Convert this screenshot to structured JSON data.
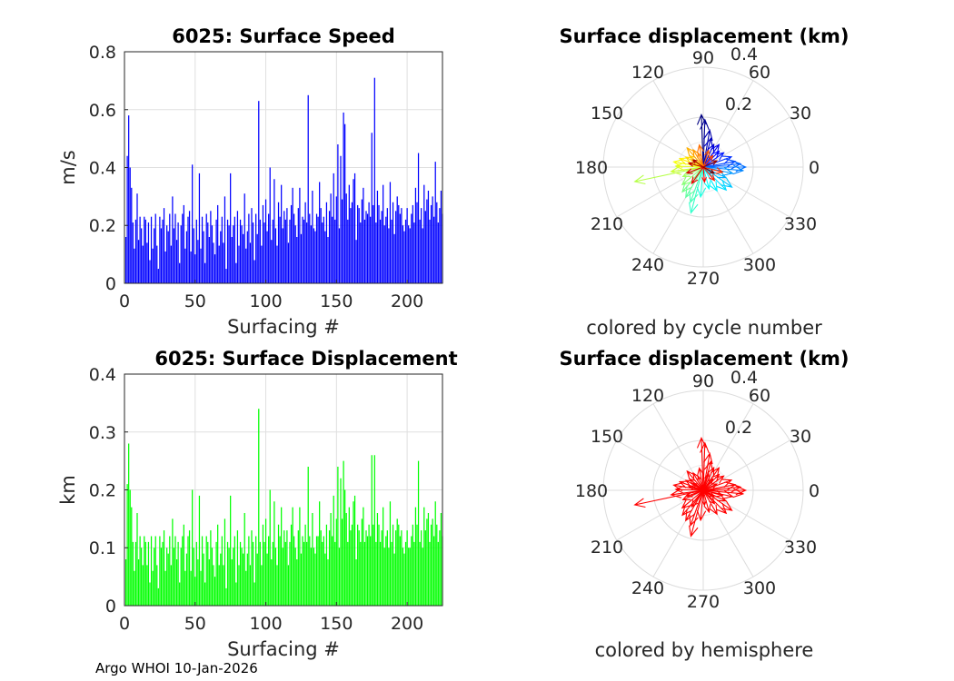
{
  "chart_data": [
    {
      "id": "speed",
      "type": "bar",
      "title": "6025: Surface Speed",
      "xlabel": "Surfacing #",
      "ylabel": "m/s",
      "xlim": [
        0,
        225
      ],
      "ylim": [
        0,
        0.8
      ],
      "xticks": [
        "0",
        "50",
        "100",
        "150",
        "200"
      ],
      "yticks": [
        "0",
        "0.2",
        "0.4",
        "0.6",
        "0.8"
      ],
      "color": "#0000ff",
      "grid": true,
      "values": [
        0.16,
        0.44,
        0.58,
        0.4,
        0.33,
        0.21,
        0.12,
        0.22,
        0.31,
        0.15,
        0.23,
        0.19,
        0.13,
        0.23,
        0.22,
        0.14,
        0.21,
        0.08,
        0.23,
        0.12,
        0.19,
        0.24,
        0.13,
        0.05,
        0.23,
        0.19,
        0.22,
        0.26,
        0.11,
        0.2,
        0.18,
        0.24,
        0.13,
        0.3,
        0.19,
        0.24,
        0.15,
        0.21,
        0.07,
        0.2,
        0.24,
        0.27,
        0.12,
        0.18,
        0.23,
        0.25,
        0.11,
        0.41,
        0.19,
        0.1,
        0.22,
        0.15,
        0.38,
        0.12,
        0.23,
        0.18,
        0.07,
        0.24,
        0.21,
        0.16,
        0.25,
        0.2,
        0.14,
        0.1,
        0.22,
        0.27,
        0.13,
        0.18,
        0.23,
        0.14,
        0.3,
        0.05,
        0.22,
        0.2,
        0.38,
        0.16,
        0.2,
        0.23,
        0.07,
        0.25,
        0.13,
        0.22,
        0.2,
        0.17,
        0.31,
        0.12,
        0.18,
        0.24,
        0.14,
        0.26,
        0.21,
        0.08,
        0.24,
        0.17,
        0.63,
        0.22,
        0.13,
        0.27,
        0.21,
        0.29,
        0.18,
        0.24,
        0.4,
        0.15,
        0.22,
        0.36,
        0.19,
        0.13,
        0.28,
        0.23,
        0.34,
        0.19,
        0.25,
        0.22,
        0.26,
        0.14,
        0.22,
        0.27,
        0.33,
        0.24,
        0.2,
        0.16,
        0.26,
        0.33,
        0.17,
        0.23,
        0.22,
        0.28,
        0.21,
        0.65,
        0.24,
        0.2,
        0.32,
        0.19,
        0.18,
        0.24,
        0.23,
        0.35,
        0.26,
        0.21,
        0.23,
        0.18,
        0.28,
        0.16,
        0.25,
        0.31,
        0.23,
        0.38,
        0.22,
        0.3,
        0.48,
        0.19,
        0.44,
        0.29,
        0.59,
        0.55,
        0.31,
        0.22,
        0.34,
        0.26,
        0.28,
        0.36,
        0.38,
        0.15,
        0.27,
        0.26,
        0.21,
        0.29,
        0.33,
        0.22,
        0.25,
        0.24,
        0.28,
        0.23,
        0.52,
        0.27,
        0.71,
        0.21,
        0.32,
        0.27,
        0.22,
        0.25,
        0.34,
        0.2,
        0.23,
        0.26,
        0.19,
        0.35,
        0.22,
        0.28,
        0.17,
        0.25,
        0.3,
        0.27,
        0.24,
        0.26,
        0.2,
        0.18,
        0.22,
        0.26,
        0.2,
        0.19,
        0.24,
        0.27,
        0.21,
        0.33,
        0.28,
        0.45,
        0.22,
        0.26,
        0.19,
        0.34,
        0.25,
        0.29,
        0.32,
        0.22,
        0.27,
        0.3,
        0.23,
        0.42,
        0.28,
        0.21,
        0.26,
        0.32,
        0.24
      ]
    },
    {
      "id": "displacement",
      "type": "bar",
      "title": "6025: Surface Displacement",
      "xlabel": "Surfacing #",
      "ylabel": "km",
      "xlim": [
        0,
        225
      ],
      "ylim": [
        0,
        0.4
      ],
      "xticks": [
        "0",
        "50",
        "100",
        "150",
        "200"
      ],
      "yticks": [
        "0",
        "0.1",
        "0.2",
        "0.3",
        "0.4"
      ],
      "color": "#00ff00",
      "grid": true,
      "values": [
        0.08,
        0.21,
        0.28,
        0.2,
        0.17,
        0.11,
        0.06,
        0.11,
        0.16,
        0.08,
        0.12,
        0.1,
        0.07,
        0.12,
        0.11,
        0.07,
        0.11,
        0.04,
        0.12,
        0.06,
        0.1,
        0.12,
        0.07,
        0.03,
        0.12,
        0.1,
        0.11,
        0.13,
        0.06,
        0.1,
        0.09,
        0.12,
        0.07,
        0.15,
        0.1,
        0.12,
        0.08,
        0.11,
        0.04,
        0.1,
        0.12,
        0.14,
        0.06,
        0.09,
        0.12,
        0.13,
        0.06,
        0.2,
        0.1,
        0.05,
        0.11,
        0.08,
        0.19,
        0.06,
        0.12,
        0.09,
        0.04,
        0.12,
        0.11,
        0.08,
        0.13,
        0.1,
        0.07,
        0.05,
        0.11,
        0.14,
        0.07,
        0.09,
        0.12,
        0.07,
        0.15,
        0.03,
        0.11,
        0.1,
        0.19,
        0.08,
        0.1,
        0.12,
        0.04,
        0.13,
        0.07,
        0.11,
        0.1,
        0.09,
        0.16,
        0.06,
        0.09,
        0.12,
        0.07,
        0.13,
        0.11,
        0.04,
        0.12,
        0.09,
        0.34,
        0.11,
        0.07,
        0.14,
        0.11,
        0.15,
        0.09,
        0.12,
        0.2,
        0.08,
        0.11,
        0.18,
        0.1,
        0.07,
        0.14,
        0.12,
        0.17,
        0.1,
        0.13,
        0.11,
        0.13,
        0.07,
        0.11,
        0.14,
        0.17,
        0.12,
        0.1,
        0.08,
        0.13,
        0.17,
        0.09,
        0.12,
        0.11,
        0.14,
        0.11,
        0.24,
        0.12,
        0.1,
        0.16,
        0.1,
        0.09,
        0.12,
        0.12,
        0.18,
        0.13,
        0.11,
        0.12,
        0.09,
        0.14,
        0.08,
        0.13,
        0.16,
        0.12,
        0.19,
        0.11,
        0.15,
        0.24,
        0.1,
        0.22,
        0.15,
        0.25,
        0.2,
        0.16,
        0.11,
        0.17,
        0.13,
        0.14,
        0.18,
        0.19,
        0.08,
        0.14,
        0.13,
        0.11,
        0.15,
        0.17,
        0.11,
        0.13,
        0.12,
        0.14,
        0.12,
        0.26,
        0.14,
        0.26,
        0.11,
        0.16,
        0.14,
        0.11,
        0.13,
        0.17,
        0.1,
        0.12,
        0.13,
        0.1,
        0.18,
        0.11,
        0.14,
        0.09,
        0.13,
        0.15,
        0.14,
        0.12,
        0.13,
        0.1,
        0.09,
        0.11,
        0.13,
        0.1,
        0.1,
        0.12,
        0.14,
        0.11,
        0.17,
        0.14,
        0.25,
        0.11,
        0.13,
        0.1,
        0.17,
        0.13,
        0.15,
        0.16,
        0.11,
        0.14,
        0.15,
        0.12,
        0.18,
        0.14,
        0.11,
        0.13,
        0.16,
        0.12
      ]
    },
    {
      "id": "polar-cycle",
      "type": "polar-compass",
      "title": "Surface displacement (km)",
      "caption": "colored by cycle number",
      "rmax": 0.4,
      "rticks": [
        "0.2",
        "0.4"
      ],
      "rtick_values": [
        0.2,
        0.4
      ],
      "angle_labels": [
        "0",
        "30",
        "60",
        "90",
        "120",
        "150",
        "180",
        "210",
        "240",
        "270",
        "300",
        "330"
      ],
      "angles_deg": [
        0,
        30,
        60,
        90,
        120,
        150,
        180,
        210,
        240,
        270,
        300,
        330
      ],
      "color_mode": "jet-by-cycle",
      "vectors": [
        {
          "angle": 92,
          "r": 0.21
        },
        {
          "angle": 88,
          "r": 0.19
        },
        {
          "angle": 80,
          "r": 0.15
        },
        {
          "angle": 75,
          "r": 0.12
        },
        {
          "angle": 65,
          "r": 0.1
        },
        {
          "angle": 55,
          "r": 0.11
        },
        {
          "angle": 45,
          "r": 0.09
        },
        {
          "angle": 35,
          "r": 0.1
        },
        {
          "angle": 20,
          "r": 0.12
        },
        {
          "angle": 10,
          "r": 0.13
        },
        {
          "angle": 5,
          "r": 0.15
        },
        {
          "angle": 0,
          "r": 0.17
        },
        {
          "angle": -5,
          "r": 0.16
        },
        {
          "angle": -12,
          "r": 0.12
        },
        {
          "angle": -25,
          "r": 0.1
        },
        {
          "angle": -35,
          "r": 0.14
        },
        {
          "angle": -45,
          "r": 0.13
        },
        {
          "angle": -60,
          "r": 0.11
        },
        {
          "angle": -75,
          "r": 0.09
        },
        {
          "angle": -95,
          "r": 0.12
        },
        {
          "angle": -105,
          "r": 0.19
        },
        {
          "angle": -110,
          "r": 0.15
        },
        {
          "angle": -120,
          "r": 0.14
        },
        {
          "angle": -130,
          "r": 0.13
        },
        {
          "angle": -140,
          "r": 0.11
        },
        {
          "angle": -155,
          "r": 0.09
        },
        {
          "angle": -168,
          "r": 0.28
        },
        {
          "angle": -172,
          "r": 0.13
        },
        {
          "angle": 178,
          "r": 0.11
        },
        {
          "angle": 170,
          "r": 0.12
        },
        {
          "angle": 160,
          "r": 0.1
        },
        {
          "angle": 150,
          "r": 0.08
        },
        {
          "angle": 140,
          "r": 0.07
        },
        {
          "angle": 130,
          "r": 0.1
        },
        {
          "angle": 120,
          "r": 0.08
        },
        {
          "angle": 110,
          "r": 0.06
        },
        {
          "angle": 100,
          "r": 0.09
        },
        {
          "angle": 72,
          "r": 0.07
        },
        {
          "angle": 50,
          "r": 0.06
        },
        {
          "angle": -15,
          "r": 0.08
        },
        {
          "angle": -50,
          "r": 0.07
        },
        {
          "angle": -85,
          "r": 0.06
        },
        {
          "angle": -125,
          "r": 0.08
        },
        {
          "angle": -160,
          "r": 0.07
        },
        {
          "angle": 165,
          "r": 0.06
        },
        {
          "angle": 145,
          "r": 0.05
        },
        {
          "angle": 25,
          "r": 0.06
        },
        {
          "angle": -30,
          "r": 0.05
        }
      ]
    },
    {
      "id": "polar-hemisphere",
      "type": "polar-compass",
      "title": "Surface displacement (km)",
      "caption": "colored by hemisphere",
      "rmax": 0.4,
      "rticks": [
        "0.2",
        "0.4"
      ],
      "rtick_values": [
        0.2,
        0.4
      ],
      "angle_labels": [
        "0",
        "30",
        "60",
        "90",
        "120",
        "150",
        "180",
        "210",
        "240",
        "270",
        "300",
        "330"
      ],
      "angles_deg": [
        0,
        30,
        60,
        90,
        120,
        150,
        180,
        210,
        240,
        270,
        300,
        330
      ],
      "color_mode": "single",
      "color": "#ff0000",
      "vectors": [
        {
          "angle": 92,
          "r": 0.21
        },
        {
          "angle": 88,
          "r": 0.19
        },
        {
          "angle": 80,
          "r": 0.15
        },
        {
          "angle": 75,
          "r": 0.12
        },
        {
          "angle": 65,
          "r": 0.1
        },
        {
          "angle": 55,
          "r": 0.11
        },
        {
          "angle": 45,
          "r": 0.09
        },
        {
          "angle": 35,
          "r": 0.1
        },
        {
          "angle": 20,
          "r": 0.12
        },
        {
          "angle": 10,
          "r": 0.13
        },
        {
          "angle": 5,
          "r": 0.15
        },
        {
          "angle": 0,
          "r": 0.17
        },
        {
          "angle": -5,
          "r": 0.16
        },
        {
          "angle": -12,
          "r": 0.12
        },
        {
          "angle": -25,
          "r": 0.1
        },
        {
          "angle": -35,
          "r": 0.14
        },
        {
          "angle": -45,
          "r": 0.13
        },
        {
          "angle": -60,
          "r": 0.11
        },
        {
          "angle": -75,
          "r": 0.09
        },
        {
          "angle": -95,
          "r": 0.12
        },
        {
          "angle": -105,
          "r": 0.19
        },
        {
          "angle": -110,
          "r": 0.15
        },
        {
          "angle": -120,
          "r": 0.14
        },
        {
          "angle": -130,
          "r": 0.13
        },
        {
          "angle": -140,
          "r": 0.11
        },
        {
          "angle": -155,
          "r": 0.09
        },
        {
          "angle": -168,
          "r": 0.28
        },
        {
          "angle": -172,
          "r": 0.13
        },
        {
          "angle": 178,
          "r": 0.11
        },
        {
          "angle": 170,
          "r": 0.12
        },
        {
          "angle": 160,
          "r": 0.1
        },
        {
          "angle": 150,
          "r": 0.08
        },
        {
          "angle": 140,
          "r": 0.07
        },
        {
          "angle": 130,
          "r": 0.1
        },
        {
          "angle": 120,
          "r": 0.08
        },
        {
          "angle": 110,
          "r": 0.06
        },
        {
          "angle": 100,
          "r": 0.09
        },
        {
          "angle": 72,
          "r": 0.07
        },
        {
          "angle": 50,
          "r": 0.06
        },
        {
          "angle": -15,
          "r": 0.08
        },
        {
          "angle": -50,
          "r": 0.07
        },
        {
          "angle": -85,
          "r": 0.06
        },
        {
          "angle": -125,
          "r": 0.08
        },
        {
          "angle": -160,
          "r": 0.07
        },
        {
          "angle": 165,
          "r": 0.06
        },
        {
          "angle": 145,
          "r": 0.05
        },
        {
          "angle": 25,
          "r": 0.06
        },
        {
          "angle": -30,
          "r": 0.05
        }
      ]
    }
  ],
  "footer": "Argo WHOI 10-Jan-2026"
}
